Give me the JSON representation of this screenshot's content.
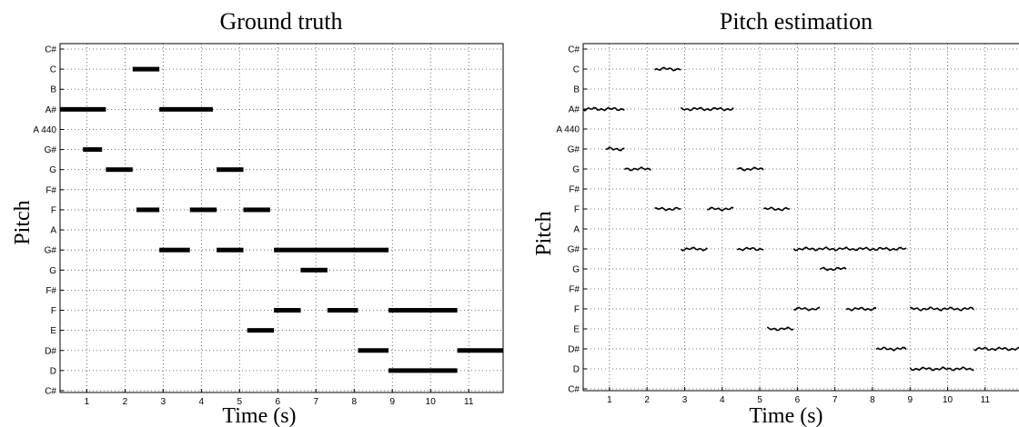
{
  "chart_data": [
    {
      "type": "piano-roll",
      "title": "Ground truth",
      "xlabel": "Time (s)",
      "ylabel": "Pitch",
      "xlim": [
        0.3,
        11.9
      ],
      "x_ticks": [
        "1",
        "2",
        "3",
        "4",
        "5",
        "6",
        "7",
        "8",
        "9",
        "10",
        "11"
      ],
      "y_ticks": [
        "C#",
        "D",
        "D#",
        "E",
        "F",
        "F#",
        "G",
        "G#",
        "A",
        "F",
        "F#",
        "G",
        "G#",
        "A 440",
        "A#",
        "B",
        "C",
        "C#"
      ],
      "grid": true,
      "notes": [
        {
          "pitch": "A#",
          "start": 0.3,
          "end": 1.5
        },
        {
          "pitch": "G#",
          "start": 0.9,
          "end": 1.4
        },
        {
          "pitch": "G",
          "start": 1.5,
          "end": 2.2
        },
        {
          "pitch": "C",
          "start": 2.2,
          "end": 2.9
        },
        {
          "pitch": "F",
          "start": 2.3,
          "end": 2.9
        },
        {
          "pitch": "A#",
          "start": 2.9,
          "end": 4.3
        },
        {
          "pitch": "G#",
          "start": 2.9,
          "end": 3.7
        },
        {
          "pitch": "F",
          "start": 3.7,
          "end": 4.4
        },
        {
          "pitch": "G",
          "start": 4.4,
          "end": 5.1
        },
        {
          "pitch": "G#",
          "start": 4.4,
          "end": 5.1
        },
        {
          "pitch": "F",
          "start": 5.1,
          "end": 5.8
        },
        {
          "pitch": "E",
          "start": 5.2,
          "end": 5.9
        },
        {
          "pitch": "G#",
          "start": 5.9,
          "end": 8.9
        },
        {
          "pitch": "F (low)",
          "start": 5.9,
          "end": 6.6
        },
        {
          "pitch": "G (low)",
          "start": 6.6,
          "end": 7.3
        },
        {
          "pitch": "F (low)",
          "start": 7.3,
          "end": 8.1
        },
        {
          "pitch": "D#",
          "start": 8.1,
          "end": 8.9
        },
        {
          "pitch": "F (low)",
          "start": 8.9,
          "end": 10.7
        },
        {
          "pitch": "D",
          "start": 8.9,
          "end": 10.7
        },
        {
          "pitch": "D#",
          "start": 10.7,
          "end": 11.9
        }
      ]
    },
    {
      "type": "scatter",
      "title": "Pitch estimation",
      "xlabel": "Time (s)",
      "ylabel": "Pitch",
      "xlim": [
        0.3,
        11.9
      ],
      "x_ticks": [
        "1",
        "2",
        "3",
        "4",
        "5",
        "6",
        "7",
        "8",
        "9",
        "10",
        "11"
      ],
      "y_ticks": [
        "C#",
        "D",
        "D#",
        "E",
        "F",
        "F#",
        "G",
        "G#",
        "A",
        "F",
        "F#",
        "G",
        "G#",
        "A 440",
        "A#",
        "B",
        "C",
        "C#"
      ],
      "grid": true,
      "segments": [
        {
          "pitch": "A#",
          "start": 0.3,
          "end": 1.4
        },
        {
          "pitch": "G#",
          "start": 0.9,
          "end": 1.4
        },
        {
          "pitch": "G",
          "start": 1.4,
          "end": 2.1
        },
        {
          "pitch": "C",
          "start": 2.2,
          "end": 2.9
        },
        {
          "pitch": "F",
          "start": 2.2,
          "end": 2.9
        },
        {
          "pitch": "A#",
          "start": 2.9,
          "end": 4.3
        },
        {
          "pitch": "G#",
          "start": 2.9,
          "end": 3.6
        },
        {
          "pitch": "F",
          "start": 3.6,
          "end": 4.3
        },
        {
          "pitch": "G",
          "start": 4.4,
          "end": 5.1
        },
        {
          "pitch": "G#",
          "start": 4.4,
          "end": 5.1
        },
        {
          "pitch": "F",
          "start": 5.1,
          "end": 5.8
        },
        {
          "pitch": "E",
          "start": 5.2,
          "end": 5.9
        },
        {
          "pitch": "G#",
          "start": 5.9,
          "end": 8.9
        },
        {
          "pitch": "F (low)",
          "start": 5.9,
          "end": 6.6
        },
        {
          "pitch": "G (low)",
          "start": 6.6,
          "end": 7.3
        },
        {
          "pitch": "F (low)",
          "start": 7.3,
          "end": 8.1
        },
        {
          "pitch": "D#",
          "start": 8.1,
          "end": 8.9
        },
        {
          "pitch": "F (low)",
          "start": 9.0,
          "end": 10.7
        },
        {
          "pitch": "D",
          "start": 9.0,
          "end": 10.7
        },
        {
          "pitch": "D#",
          "start": 10.7,
          "end": 11.9
        }
      ]
    }
  ]
}
